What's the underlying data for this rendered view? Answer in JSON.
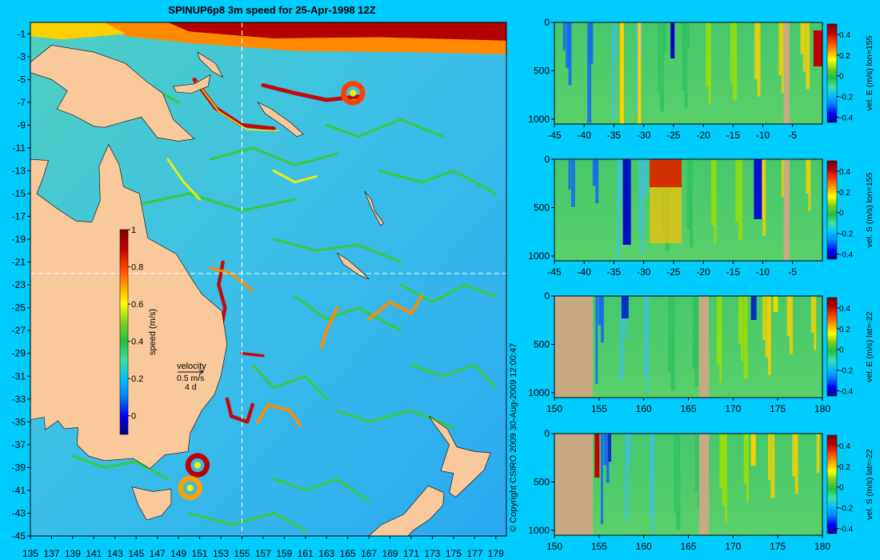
{
  "title": "SPINUP6p8 3m speed for 25-Apr-1998 12Z",
  "copyright": "© Copyright CSIRO 2009   30-Aug-2009 12:00:47",
  "colors": {
    "background": "#00ccff",
    "land": "#f9c89b",
    "section_land": "#c8aa82",
    "guide_line": "#ffffff",
    "colormap": [
      "#000080",
      "#0000ff",
      "#0080ff",
      "#00c0ff",
      "#40e0a0",
      "#20c040",
      "#80d020",
      "#ffff00",
      "#ffa000",
      "#ff4000",
      "#c00000",
      "#800000"
    ]
  },
  "chart_data": [
    {
      "type": "heatmap",
      "name": "map",
      "title": "SPINUP6p8 3m speed for 25-Apr-1998 12Z",
      "xlim": [
        135,
        180
      ],
      "ylim": [
        -45,
        0
      ],
      "x_ticks": [
        135,
        137,
        139,
        141,
        143,
        145,
        147,
        149,
        151,
        153,
        155,
        157,
        159,
        161,
        163,
        165,
        167,
        169,
        171,
        173,
        175,
        177,
        179
      ],
      "y_ticks": [
        -1,
        -3,
        -5,
        -7,
        -9,
        -11,
        -13,
        -15,
        -17,
        -19,
        -21,
        -23,
        -25,
        -27,
        -29,
        -31,
        -33,
        -35,
        -37,
        -39,
        -41,
        -43,
        -45
      ],
      "guide_lon": 155,
      "guide_lat": -22,
      "colorbar": {
        "label": "speed (m/s)",
        "range": [
          -0.1,
          1
        ],
        "ticks": [
          0,
          0.2,
          0.4,
          0.6,
          0.8,
          1
        ]
      },
      "velocity_key": {
        "label": "velocity",
        "speed": "0.5 m/s",
        "days": "4 d"
      },
      "eddies": [
        {
          "lon": 150.8,
          "lat": -38.8,
          "speed": 0.9
        },
        {
          "lon": 150.1,
          "lat": -40.8,
          "speed": 0.7
        },
        {
          "lon": 165.5,
          "lat": -6.2,
          "speed": 0.8
        }
      ]
    },
    {
      "type": "heatmap",
      "name": "section-east-lon155",
      "colorbar_label": "vel. E (m/s) lon=155",
      "xlim": [
        -45,
        0
      ],
      "x_ticks": [
        -45,
        -40,
        -35,
        -30,
        -25,
        -20,
        -15,
        -10,
        -5
      ],
      "ylim": [
        1050,
        0
      ],
      "y_ticks": [
        0,
        500,
        1000
      ],
      "colorbar_ticks": [
        -0.4,
        -0.2,
        0,
        0.2,
        0.4
      ],
      "land_bands": [
        [
          -6.5,
          -5.5
        ]
      ]
    },
    {
      "type": "heatmap",
      "name": "section-south-lon155",
      "colorbar_label": "vel. S (m/s) lon=155",
      "xlim": [
        -45,
        0
      ],
      "x_ticks": [
        -45,
        -40,
        -35,
        -30,
        -25,
        -20,
        -15,
        -10,
        -5
      ],
      "ylim": [
        1050,
        0
      ],
      "y_ticks": [
        0,
        500,
        1000
      ],
      "colorbar_ticks": [
        -0.4,
        -0.2,
        0,
        0.2,
        0.4
      ],
      "land_bands": [
        [
          -6.5,
          -5.5
        ]
      ]
    },
    {
      "type": "heatmap",
      "name": "section-east-lat22",
      "colorbar_label": "vel. E (m/s) lat=-22",
      "xlim": [
        150,
        180
      ],
      "x_ticks": [
        150,
        155,
        160,
        165,
        170,
        175,
        180
      ],
      "ylim": [
        1050,
        0
      ],
      "y_ticks": [
        0,
        500,
        1000
      ],
      "colorbar_ticks": [
        -0.4,
        -0.2,
        0,
        0.2,
        0.4
      ],
      "land_bands": [
        [
          150,
          154.3
        ],
        [
          166.2,
          167.3
        ]
      ]
    },
    {
      "type": "heatmap",
      "name": "section-south-lat22",
      "colorbar_label": "vel. S (m/s) lat=-22",
      "xlim": [
        150,
        180
      ],
      "x_ticks": [
        150,
        155,
        160,
        165,
        170,
        175,
        180
      ],
      "ylim": [
        1050,
        0
      ],
      "y_ticks": [
        0,
        500,
        1000
      ],
      "colorbar_ticks": [
        -0.4,
        -0.2,
        0,
        0.2,
        0.4
      ],
      "land_bands": [
        [
          150,
          154.3
        ],
        [
          166.2,
          167.3
        ]
      ]
    }
  ]
}
